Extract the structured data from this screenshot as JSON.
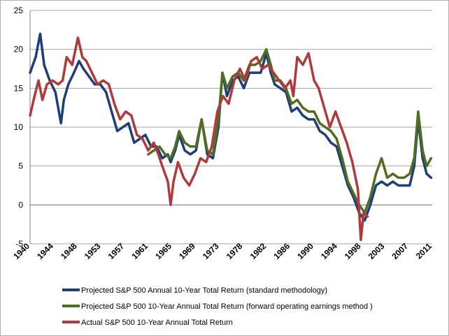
{
  "chart_data": {
    "type": "line",
    "title": "",
    "xlabel": "",
    "ylabel": "",
    "ylim": [
      -5,
      25
    ],
    "xlim": [
      1940,
      2011.5
    ],
    "y_ticks": [
      -5,
      0,
      5,
      10,
      15,
      20,
      25
    ],
    "x_ticks": [
      "1940",
      "1944",
      "1948",
      "1953",
      "1957",
      "1961",
      "1965",
      "1969",
      "1973",
      "1978",
      "1982",
      "1986",
      "1990",
      "1994",
      "1998",
      "2003",
      "2007",
      "2011"
    ],
    "grid": "horizontal",
    "legend_position": "bottom",
    "series": [
      {
        "name": "Projected S&P 500 Annual 10-Year Total Return (standard methodology)",
        "color": "#1f3d7a",
        "points": [
          [
            1940,
            17.0
          ],
          [
            1941,
            19.0
          ],
          [
            1941.8,
            22.0
          ],
          [
            1942.5,
            18.0
          ],
          [
            1943.5,
            16.0
          ],
          [
            1944.5,
            14.5
          ],
          [
            1945.5,
            10.5
          ],
          [
            1946,
            13.5
          ],
          [
            1946.8,
            15.5
          ],
          [
            1947.8,
            17.0
          ],
          [
            1948.7,
            18.5
          ],
          [
            1949.5,
            17.5
          ],
          [
            1950.5,
            16.5
          ],
          [
            1951.5,
            15.5
          ],
          [
            1952.5,
            15.5
          ],
          [
            1953.5,
            14.5
          ],
          [
            1954.5,
            12.0
          ],
          [
            1955.5,
            9.5
          ],
          [
            1956.5,
            10.0
          ],
          [
            1957.5,
            10.5
          ],
          [
            1958.5,
            8.0
          ],
          [
            1959.5,
            8.5
          ],
          [
            1960.5,
            9.0
          ],
          [
            1961.5,
            7.5
          ],
          [
            1962.5,
            7.5
          ],
          [
            1963.5,
            6.0
          ],
          [
            1964.5,
            6.5
          ],
          [
            1965,
            5.5
          ],
          [
            1965.8,
            7.0
          ],
          [
            1966.5,
            9.0
          ],
          [
            1967.5,
            7.0
          ],
          [
            1968.5,
            6.5
          ],
          [
            1969.5,
            7.0
          ],
          [
            1970.5,
            11.0
          ],
          [
            1971.5,
            6.5
          ],
          [
            1972.5,
            6.0
          ],
          [
            1973.5,
            10.0
          ],
          [
            1974.2,
            17.0
          ],
          [
            1975,
            14.0
          ],
          [
            1976,
            16.0
          ],
          [
            1977,
            16.5
          ],
          [
            1978,
            15.0
          ],
          [
            1979,
            17.0
          ],
          [
            1980,
            17.0
          ],
          [
            1981,
            17.0
          ],
          [
            1982,
            19.5
          ],
          [
            1982.8,
            17.0
          ],
          [
            1983.5,
            15.5
          ],
          [
            1984.5,
            15.0
          ],
          [
            1985.5,
            14.5
          ],
          [
            1986.5,
            12.0
          ],
          [
            1987.5,
            12.5
          ],
          [
            1988.5,
            11.5
          ],
          [
            1989.5,
            11.0
          ],
          [
            1990.5,
            11.0
          ],
          [
            1991.5,
            9.5
          ],
          [
            1992.5,
            9.0
          ],
          [
            1993.5,
            8.0
          ],
          [
            1994.5,
            7.5
          ],
          [
            1995.5,
            5.0
          ],
          [
            1996.5,
            2.5
          ],
          [
            1997.5,
            1.0
          ],
          [
            1998.5,
            -1.0
          ],
          [
            1999.5,
            -2.0
          ],
          [
            2000.5,
            0.0
          ],
          [
            2001.5,
            2.5
          ],
          [
            2002.5,
            3.0
          ],
          [
            2003.5,
            2.5
          ],
          [
            2004.5,
            3.0
          ],
          [
            2005.5,
            2.5
          ],
          [
            2006.5,
            2.5
          ],
          [
            2007.5,
            2.5
          ],
          [
            2008.3,
            5.0
          ],
          [
            2009,
            11.0
          ],
          [
            2009.8,
            6.0
          ],
          [
            2010.5,
            4.0
          ],
          [
            2011.3,
            3.5
          ]
        ]
      },
      {
        "name": "Projected S&P 500 10-Year Annual Total Return (forward operating earnings method )",
        "color": "#4f6f1f",
        "points": [
          [
            1961,
            6.5
          ],
          [
            1962,
            7.0
          ],
          [
            1963,
            7.5
          ],
          [
            1964,
            6.5
          ],
          [
            1965,
            6.0
          ],
          [
            1965.8,
            7.5
          ],
          [
            1966.5,
            9.5
          ],
          [
            1967.5,
            8.0
          ],
          [
            1968.5,
            7.5
          ],
          [
            1969.5,
            7.5
          ],
          [
            1970.5,
            11.0
          ],
          [
            1971.5,
            7.0
          ],
          [
            1972.5,
            6.5
          ],
          [
            1973.5,
            11.0
          ],
          [
            1974.2,
            17.0
          ],
          [
            1975,
            15.0
          ],
          [
            1976,
            16.5
          ],
          [
            1977,
            17.0
          ],
          [
            1978,
            16.0
          ],
          [
            1979,
            18.0
          ],
          [
            1980,
            18.0
          ],
          [
            1981,
            18.5
          ],
          [
            1982,
            20.0
          ],
          [
            1982.8,
            18.0
          ],
          [
            1983.5,
            16.0
          ],
          [
            1984.5,
            16.0
          ],
          [
            1985.5,
            15.0
          ],
          [
            1986.5,
            13.0
          ],
          [
            1987.5,
            13.5
          ],
          [
            1988.5,
            12.5
          ],
          [
            1989.5,
            12.0
          ],
          [
            1990.5,
            12.0
          ],
          [
            1991.5,
            10.5
          ],
          [
            1992.5,
            10.0
          ],
          [
            1993.5,
            9.5
          ],
          [
            1994.5,
            8.5
          ],
          [
            1995.5,
            6.0
          ],
          [
            1996.5,
            3.0
          ],
          [
            1997.5,
            1.5
          ],
          [
            1998.5,
            0.0
          ],
          [
            1999.5,
            -1.0
          ],
          [
            2000.5,
            1.0
          ],
          [
            2001.5,
            4.0
          ],
          [
            2002.5,
            6.0
          ],
          [
            2003.5,
            3.5
          ],
          [
            2004.5,
            4.0
          ],
          [
            2005.5,
            3.5
          ],
          [
            2006.5,
            3.5
          ],
          [
            2007.5,
            4.0
          ],
          [
            2008.3,
            6.0
          ],
          [
            2009,
            12.0
          ],
          [
            2009.8,
            7.0
          ],
          [
            2010.5,
            5.0
          ],
          [
            2011.3,
            6.0
          ]
        ]
      },
      {
        "name": "Actual S&P 500 10-Year Annual Total Return",
        "color": "#b03a3a",
        "points": [
          [
            1940,
            11.5
          ],
          [
            1940.8,
            14.0
          ],
          [
            1941.5,
            16.0
          ],
          [
            1942.2,
            13.5
          ],
          [
            1943,
            15.5
          ],
          [
            1944,
            16.0
          ],
          [
            1945,
            15.5
          ],
          [
            1945.8,
            16.0
          ],
          [
            1946.5,
            19.0
          ],
          [
            1947.5,
            18.0
          ],
          [
            1948.5,
            21.5
          ],
          [
            1949.3,
            19.0
          ],
          [
            1950,
            18.5
          ],
          [
            1951,
            17.0
          ],
          [
            1952,
            15.5
          ],
          [
            1953,
            16.0
          ],
          [
            1954,
            15.5
          ],
          [
            1955,
            13.0
          ],
          [
            1956,
            11.0
          ],
          [
            1957,
            12.0
          ],
          [
            1958,
            11.5
          ],
          [
            1959,
            9.0
          ],
          [
            1960,
            8.5
          ],
          [
            1961,
            7.0
          ],
          [
            1962,
            8.0
          ],
          [
            1962.8,
            6.5
          ],
          [
            1963.5,
            5.0
          ],
          [
            1964.5,
            3.0
          ],
          [
            1965,
            0.0
          ],
          [
            1965.5,
            3.0
          ],
          [
            1966.3,
            5.5
          ],
          [
            1967.3,
            3.5
          ],
          [
            1968.3,
            2.5
          ],
          [
            1969.3,
            4.0
          ],
          [
            1970.3,
            6.0
          ],
          [
            1971.3,
            5.5
          ],
          [
            1972.3,
            7.5
          ],
          [
            1973.3,
            12.0
          ],
          [
            1974.3,
            14.0
          ],
          [
            1975.3,
            13.0
          ],
          [
            1976.3,
            16.0
          ],
          [
            1977.3,
            17.5
          ],
          [
            1978.3,
            16.0
          ],
          [
            1979.3,
            18.5
          ],
          [
            1980.3,
            19.0
          ],
          [
            1981.3,
            17.5
          ],
          [
            1982.3,
            18.0
          ],
          [
            1983.3,
            17.0
          ],
          [
            1984.3,
            16.0
          ],
          [
            1985.3,
            15.0
          ],
          [
            1986.3,
            16.0
          ],
          [
            1986.8,
            14.0
          ],
          [
            1987.5,
            19.0
          ],
          [
            1988.5,
            18.0
          ],
          [
            1989.5,
            19.5
          ],
          [
            1990.5,
            16.0
          ],
          [
            1991.3,
            15.0
          ],
          [
            1992.3,
            12.5
          ],
          [
            1993.3,
            10.0
          ],
          [
            1994.3,
            12.0
          ],
          [
            1995.3,
            10.0
          ],
          [
            1996.3,
            8.0
          ],
          [
            1997.3,
            5.5
          ],
          [
            1998.3,
            2.0
          ],
          [
            1998.8,
            -4.5
          ],
          [
            1999.3,
            -1.0
          ],
          [
            2000,
            -1.5
          ]
        ]
      }
    ]
  }
}
